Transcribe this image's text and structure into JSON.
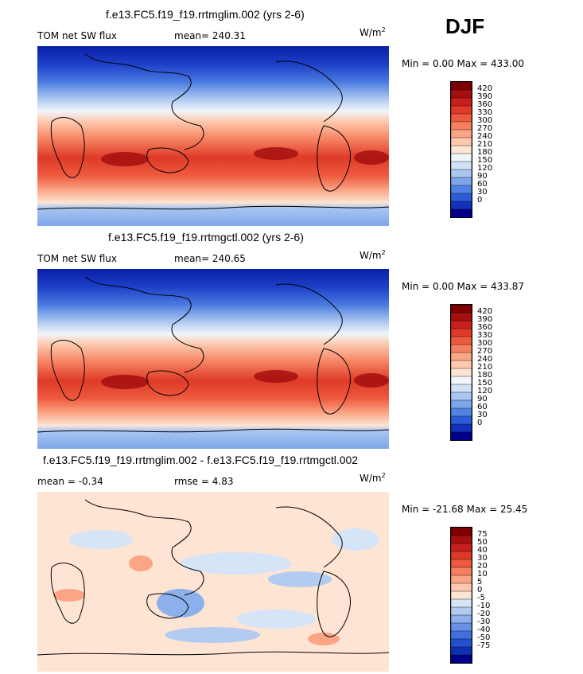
{
  "season": "DJF",
  "units": {
    "base": "W/m",
    "exp": "2"
  },
  "palette_full": [
    "#7f0000",
    "#a50f0f",
    "#c81e1e",
    "#de3a28",
    "#ee5a3e",
    "#f5805f",
    "#fba585",
    "#fdc8ad",
    "#fde4d3",
    "#f1f5fb",
    "#d0e0f5",
    "#a9c6f0",
    "#7da6ea",
    "#5083e3",
    "#2a5ed8",
    "#1230b8",
    "#00008a"
  ],
  "palette_diff": [
    "#7f0000",
    "#a50f0f",
    "#c81e1e",
    "#de3a28",
    "#ee5a3e",
    "#f5805f",
    "#fba585",
    "#fdc8ad",
    "#fde4d3",
    "#d6e4f7",
    "#b3cbf1",
    "#8cb0ec",
    "#6790e6",
    "#4370de",
    "#2450cd",
    "#0f30b2",
    "#00008a"
  ],
  "panels": [
    {
      "title": "f.e13.FC5.f19_f19.rrtmglim.002 (yrs 2-6)",
      "left_label": "TOM net SW flux",
      "stat_label": "mean=",
      "stat_value": "240.31",
      "minmax": "Min =   0.00 Max = 433.00"
    },
    {
      "title": "f.e13.FC5.f19_f19.rrtmgctl.002 (yrs 2-6)",
      "left_label": "TOM net SW flux",
      "stat_label": "mean=",
      "stat_value": "240.65",
      "minmax": "Min =   0.00 Max = 433.87"
    },
    {
      "title": "f.e13.FC5.f19_f19.rrtmglim.002 - f.e13.FC5.f19_f19.rrtmgctl.002",
      "left_label": "mean =  -0.34",
      "stat_label": "rmse =",
      "stat_value": "4.83",
      "minmax": "Min = -21.68 Max =  25.45"
    }
  ],
  "chart_data": [
    {
      "type": "heatmap",
      "title": "f.e13.FC5.f19_f19.rrtmglim.002 (yrs 2-6)",
      "variable": "TOM net SW flux",
      "units": "W/m^2",
      "mean": 240.31,
      "min": 0.0,
      "max": 433.0,
      "colorbar_levels": [
        "420",
        "390",
        "360",
        "330",
        "300",
        "270",
        "240",
        "210",
        "180",
        "150",
        "120",
        "90",
        "60",
        "30",
        "0"
      ]
    },
    {
      "type": "heatmap",
      "title": "f.e13.FC5.f19_f19.rrtmgctl.002 (yrs 2-6)",
      "variable": "TOM net SW flux",
      "units": "W/m^2",
      "mean": 240.65,
      "min": 0.0,
      "max": 433.87,
      "colorbar_levels": [
        "420",
        "390",
        "360",
        "330",
        "300",
        "270",
        "240",
        "210",
        "180",
        "150",
        "120",
        "90",
        "60",
        "30",
        "0"
      ]
    },
    {
      "type": "heatmap",
      "title": "f.e13.FC5.f19_f19.rrtmglim.002 - f.e13.FC5.f19_f19.rrtmgctl.002",
      "units": "W/m^2",
      "mean": -0.34,
      "rmse": 4.83,
      "min": -21.68,
      "max": 25.45,
      "colorbar_levels": [
        "75",
        "50",
        "40",
        "30",
        "20",
        "10",
        "5",
        "0",
        "-5",
        "-10",
        "-20",
        "-30",
        "-40",
        "-50",
        "-75"
      ]
    }
  ]
}
